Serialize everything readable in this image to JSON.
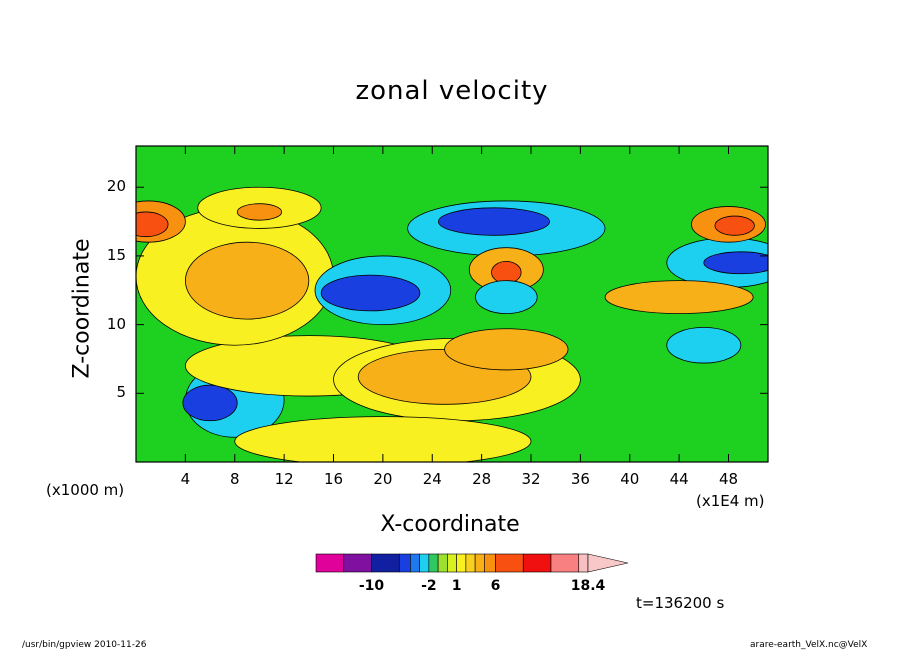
{
  "chart_data": {
    "type": "heatmap",
    "title": "zonal velocity",
    "xlabel": "X-coordinate",
    "ylabel": "Z-coordinate",
    "x_unit_label": "(x1000 m)",
    "x_scale_label": "(x1E4 m)",
    "x_ticks": [
      "4",
      "8",
      "12",
      "16",
      "20",
      "24",
      "28",
      "32",
      "36",
      "40",
      "44",
      "48"
    ],
    "x_tick_values": [
      4,
      8,
      12,
      16,
      20,
      24,
      28,
      32,
      36,
      40,
      44,
      48
    ],
    "y_ticks": [
      "5",
      "10",
      "15",
      "20"
    ],
    "y_tick_values": [
      5,
      10,
      15,
      20
    ],
    "xlim": [
      0,
      51.2
    ],
    "ylim": [
      0,
      23
    ],
    "colorbar": {
      "tick_labels": [
        "-10",
        "-2",
        "1",
        "6",
        "18.4"
      ],
      "tick_values": [
        -10,
        -2,
        1,
        6,
        18.4
      ],
      "segments": [
        {
          "from": -18,
          "to": -14,
          "color": "#e0009a"
        },
        {
          "from": -14,
          "to": -10,
          "color": "#8010a0"
        },
        {
          "from": -10,
          "to": -6,
          "color": "#1020a0"
        },
        {
          "from": -6,
          "to": -4,
          "color": "#1a3fe0"
        },
        {
          "from": -4,
          "to": -3,
          "color": "#1e78f0"
        },
        {
          "from": -3,
          "to": -2,
          "color": "#1ed0f0"
        },
        {
          "from": -2,
          "to": -1,
          "color": "#30c860"
        },
        {
          "from": -1,
          "to": 0,
          "color": "#9ee030"
        },
        {
          "from": 0,
          "to": 1,
          "color": "#d8f020"
        },
        {
          "from": 1,
          "to": 2,
          "color": "#f8f020"
        },
        {
          "from": 2,
          "to": 3,
          "color": "#f8d020"
        },
        {
          "from": 3,
          "to": 4,
          "color": "#f8b018"
        },
        {
          "from": 4,
          "to": 6,
          "color": "#f89010"
        },
        {
          "from": 6,
          "to": 10,
          "color": "#f85010"
        },
        {
          "from": 10,
          "to": 14,
          "color": "#f01010"
        },
        {
          "from": 14,
          "to": 18,
          "color": "#f88080"
        },
        {
          "from": 18,
          "to": 18.4,
          "color": "#f8c0c0"
        }
      ],
      "extend_color": "#f8c8c8"
    },
    "background_color": "#1ed020",
    "features": [
      {
        "x": 8,
        "z": 4.5,
        "value": -3,
        "rx": 4,
        "rz": 2.7
      },
      {
        "x": 6,
        "z": 4.3,
        "value": -6,
        "rx": 2.2,
        "rz": 1.3
      },
      {
        "x": 14,
        "z": 7,
        "value": 1,
        "rx": 10,
        "rz": 2.2
      },
      {
        "x": 26,
        "z": 6,
        "value": 1,
        "rx": 10,
        "rz": 3
      },
      {
        "x": 25,
        "z": 6.2,
        "value": 3,
        "rx": 7,
        "rz": 2
      },
      {
        "x": 8,
        "z": 13.5,
        "value": 1,
        "rx": 8,
        "rz": 5
      },
      {
        "x": 9,
        "z": 13.2,
        "value": 3,
        "rx": 5,
        "rz": 2.8
      },
      {
        "x": 20,
        "z": 12.5,
        "value": -3,
        "rx": 5.5,
        "rz": 2.5
      },
      {
        "x": 19,
        "z": 12.3,
        "value": -6,
        "rx": 4,
        "rz": 1.3
      },
      {
        "x": 30,
        "z": 17,
        "value": -3,
        "rx": 8,
        "rz": 2
      },
      {
        "x": 29,
        "z": 17.5,
        "value": -6,
        "rx": 4.5,
        "rz": 1
      },
      {
        "x": 48,
        "z": 14.5,
        "value": -3,
        "rx": 5,
        "rz": 1.8
      },
      {
        "x": 49,
        "z": 14.5,
        "value": -6,
        "rx": 3,
        "rz": 0.8
      },
      {
        "x": 10,
        "z": 18.5,
        "value": 1,
        "rx": 5,
        "rz": 1.5
      },
      {
        "x": 10,
        "z": 18.2,
        "value": 4,
        "rx": 1.8,
        "rz": 0.6
      },
      {
        "x": 1,
        "z": 17.5,
        "value": 4,
        "rx": 3,
        "rz": 1.5
      },
      {
        "x": 0.8,
        "z": 17.3,
        "value": 6,
        "rx": 1.8,
        "rz": 0.9
      },
      {
        "x": 48,
        "z": 17.3,
        "value": 4,
        "rx": 3,
        "rz": 1.3
      },
      {
        "x": 48.5,
        "z": 17.2,
        "value": 6,
        "rx": 1.6,
        "rz": 0.7
      },
      {
        "x": 30,
        "z": 14,
        "value": 3,
        "rx": 3,
        "rz": 1.6
      },
      {
        "x": 30,
        "z": 13.8,
        "value": 6,
        "rx": 1.2,
        "rz": 0.8
      },
      {
        "x": 30,
        "z": 8.2,
        "value": 3,
        "rx": 5,
        "rz": 1.5
      },
      {
        "x": 44,
        "z": 12,
        "value": 3,
        "rx": 6,
        "rz": 1.2
      },
      {
        "x": 46,
        "z": 8.5,
        "value": -3,
        "rx": 3,
        "rz": 1.3
      },
      {
        "x": 30,
        "z": 12,
        "value": -3,
        "rx": 2.5,
        "rz": 1.2
      },
      {
        "x": 20,
        "z": 1.5,
        "value": 1,
        "rx": 12,
        "rz": 1.8
      }
    ]
  },
  "time_label": "t=136200 s",
  "footer": {
    "left": "/usr/bin/gpview  2010-11-26",
    "right": "arare-earth_VelX.nc@VelX"
  }
}
